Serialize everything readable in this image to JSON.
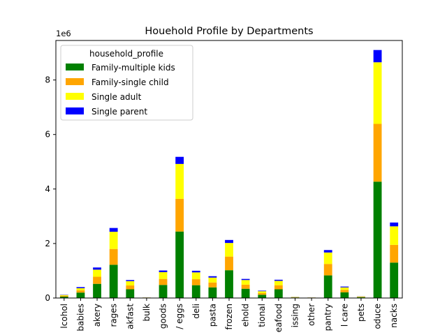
{
  "chart_data": {
    "type": "bar",
    "stacked": true,
    "title": "Houehold Profile by Departments",
    "xlabel": "",
    "ylabel": "",
    "y_offset_label": "1e6",
    "ylim": [
      0,
      9.45
    ],
    "yticks": [
      0,
      2,
      4,
      6,
      8
    ],
    "grid": false,
    "legend": {
      "title": "household_profile",
      "placement": "upper-left"
    },
    "categories": [
      "lcohol",
      "babies",
      "akery",
      "rages",
      "akfast",
      "bulk",
      "goods",
      "/ eggs",
      "deli",
      "pasta",
      "frozen",
      "ehold",
      "tional",
      "eafood",
      "issing",
      "other",
      "pantry",
      "l care",
      "pets",
      "oduce",
      "nacks"
    ],
    "series": [
      {
        "name": "Family-multiple kids",
        "color": "#008000",
        "values": [
          0.05,
          0.2,
          0.52,
          1.22,
          0.32,
          0.01,
          0.48,
          2.44,
          0.47,
          0.39,
          1.02,
          0.34,
          0.12,
          0.32,
          0.02,
          0.01,
          0.83,
          0.21,
          0.03,
          4.27,
          1.3
        ]
      },
      {
        "name": "Family-single child",
        "color": "#ffa500",
        "values": [
          0.03,
          0.08,
          0.26,
          0.58,
          0.14,
          0.005,
          0.22,
          1.2,
          0.22,
          0.18,
          0.5,
          0.15,
          0.06,
          0.15,
          0.01,
          0.005,
          0.42,
          0.09,
          0.015,
          2.12,
          0.65
        ]
      },
      {
        "name": "Single adult",
        "color": "#ffff00",
        "values": [
          0.03,
          0.08,
          0.26,
          0.63,
          0.16,
          0.005,
          0.25,
          1.28,
          0.25,
          0.18,
          0.5,
          0.17,
          0.07,
          0.16,
          0.01,
          0.005,
          0.42,
          0.09,
          0.015,
          2.26,
          0.68
        ]
      },
      {
        "name": "Single parent",
        "color": "#0000ff",
        "values": [
          0.01,
          0.04,
          0.08,
          0.14,
          0.04,
          0.002,
          0.06,
          0.26,
          0.06,
          0.05,
          0.11,
          0.04,
          0.02,
          0.04,
          0.004,
          0.002,
          0.09,
          0.03,
          0.005,
          0.45,
          0.14
        ]
      }
    ]
  }
}
